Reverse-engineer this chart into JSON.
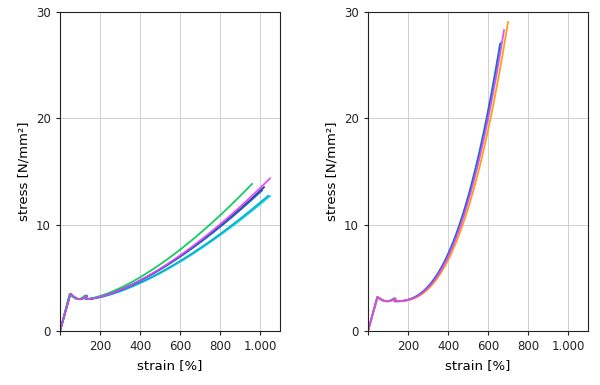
{
  "left_curves": [
    {
      "color": "#00d4e0",
      "end_strain": 1050,
      "end_stress": 13.2,
      "spread": 0.95
    },
    {
      "color": "#00aacc",
      "end_strain": 1040,
      "end_stress": 13.0,
      "spread": 0.97
    },
    {
      "color": "#1a237e",
      "end_strain": 1020,
      "end_stress": 13.3,
      "spread": 1.02
    },
    {
      "color": "#1565c0",
      "end_strain": 1010,
      "end_stress": 13.1,
      "spread": 1.01
    },
    {
      "color": "#00c853",
      "end_strain": 960,
      "end_stress": 13.5,
      "spread": 1.03
    },
    {
      "color": "#e040fb",
      "end_strain": 1050,
      "end_stress": 13.8,
      "spread": 1.05
    }
  ],
  "right_curves": [
    {
      "color": "#00d4e0",
      "end_strain": 665,
      "end_stress": 27.6,
      "spread": 0.98
    },
    {
      "color": "#1565c0",
      "end_strain": 660,
      "end_stress": 27.2,
      "spread": 0.99
    },
    {
      "color": "#ff9800",
      "end_strain": 700,
      "end_stress": 28.5,
      "spread": 1.02
    },
    {
      "color": "#e040fb",
      "end_strain": 680,
      "end_stress": 28.0,
      "spread": 1.01
    }
  ],
  "xlim_left": [
    0,
    1100
  ],
  "xlim_right": [
    0,
    1100
  ],
  "ylim": [
    0,
    30
  ],
  "xticks": [
    0,
    200,
    400,
    600,
    800,
    1000
  ],
  "xticklabels": [
    "",
    "200",
    "400",
    "600",
    "800",
    "1.000"
  ],
  "yticks": [
    0,
    10,
    20,
    30
  ],
  "xlabel": "strain [%]",
  "ylabel": "stress [N/mm²]",
  "grid_color": "#d0d0d0",
  "bg_color": "#ffffff",
  "axis_color": "#222222",
  "tick_fontsize": 8.5,
  "label_fontsize": 9.5
}
